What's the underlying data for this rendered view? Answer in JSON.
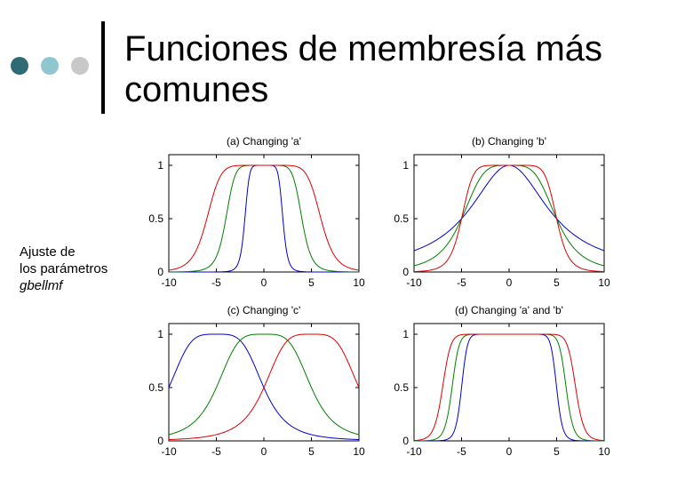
{
  "header": {
    "title": "Funciones de membresía más comunes",
    "bullet_colors": [
      "#2f6b74",
      "#8fc6cf",
      "#c8c8c8"
    ]
  },
  "side_note": {
    "line1": "Ajuste de",
    "line2": "los parámetros",
    "function_name": "gbellmf"
  },
  "chart_data": [
    {
      "type": "line",
      "title": "(a) Changing 'a'",
      "xlim": [
        -10,
        10
      ],
      "ylim": [
        0,
        1.1
      ],
      "xticks": [
        "-10",
        "-5",
        "0",
        "5",
        "10"
      ],
      "yticks": [
        "0",
        "0.5",
        "1"
      ],
      "series": [
        {
          "color": "#0000cc",
          "params": {
            "a": 2,
            "b": 4,
            "c": 0
          }
        },
        {
          "color": "#007f00",
          "params": {
            "a": 4,
            "b": 4,
            "c": 0
          }
        },
        {
          "color": "#dd0000",
          "params": {
            "a": 6,
            "b": 4,
            "c": 0
          }
        }
      ]
    },
    {
      "type": "line",
      "title": "(b) Changing 'b'",
      "xlim": [
        -10,
        10
      ],
      "ylim": [
        0,
        1.1
      ],
      "xticks": [
        "-10",
        "-5",
        "0",
        "5",
        "10"
      ],
      "yticks": [
        "0",
        "0.5",
        "1"
      ],
      "series": [
        {
          "color": "#0000cc",
          "params": {
            "a": 5,
            "b": 1,
            "c": 0
          }
        },
        {
          "color": "#007f00",
          "params": {
            "a": 5,
            "b": 2,
            "c": 0
          }
        },
        {
          "color": "#dd0000",
          "params": {
            "a": 5,
            "b": 4,
            "c": 0
          }
        }
      ]
    },
    {
      "type": "line",
      "title": "(c) Changing 'c'",
      "xlim": [
        -10,
        10
      ],
      "ylim": [
        0,
        1.1
      ],
      "xticks": [
        "-10",
        "-5",
        "0",
        "5",
        "10"
      ],
      "yticks": [
        "0",
        "0.5",
        "1"
      ],
      "series": [
        {
          "color": "#0000cc",
          "params": {
            "a": 5,
            "b": 2,
            "c": -5
          }
        },
        {
          "color": "#007f00",
          "params": {
            "a": 5,
            "b": 2,
            "c": 0
          }
        },
        {
          "color": "#dd0000",
          "params": {
            "a": 5,
            "b": 2,
            "c": 5
          }
        }
      ]
    },
    {
      "type": "line",
      "title": "(d) Changing 'a' and 'b'",
      "xlim": [
        -10,
        10
      ],
      "ylim": [
        0,
        1.1
      ],
      "xticks": [
        "-10",
        "-5",
        "0",
        "5",
        "10"
      ],
      "yticks": [
        "0",
        "0.5",
        "1"
      ],
      "series": [
        {
          "color": "#0000cc",
          "params": {
            "a": 5,
            "b": 8,
            "c": 0
          }
        },
        {
          "color": "#007f00",
          "params": {
            "a": 6,
            "b": 8,
            "c": 0
          }
        },
        {
          "color": "#dd0000",
          "params": {
            "a": 7,
            "b": 8,
            "c": 0
          }
        }
      ]
    }
  ]
}
